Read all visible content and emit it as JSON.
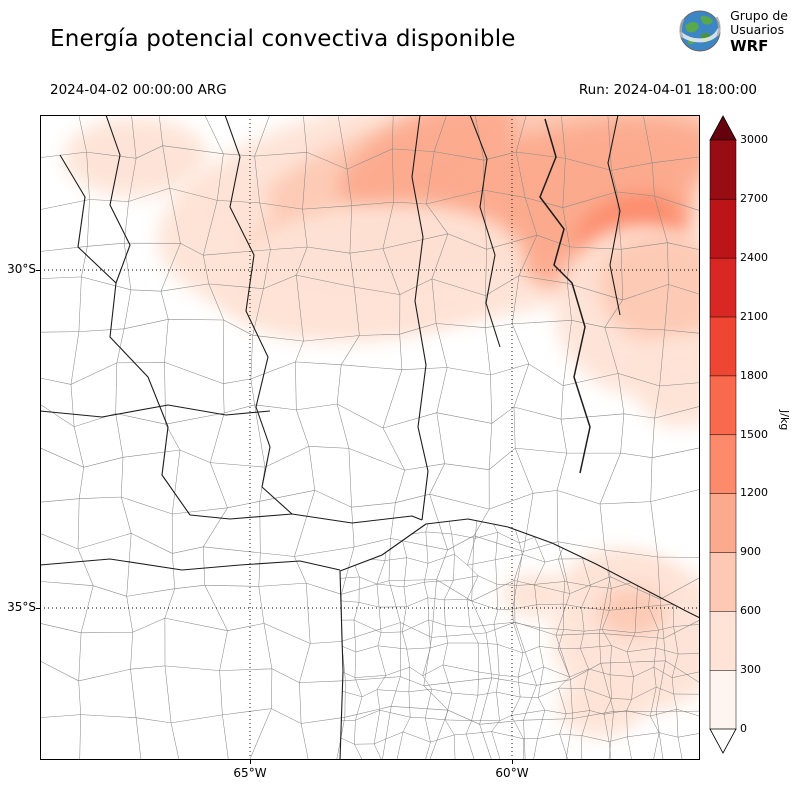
{
  "header": {
    "title": "Energía potencial convectiva disponible",
    "valid_time": "2024-04-02 00:00:00 ARG",
    "run_label": "Run: 2024-04-01 18:00:00",
    "logo": {
      "line1": "Grupo de",
      "line2": "Usuarios",
      "line3": "WRF"
    }
  },
  "axes": {
    "y_ticks": [
      {
        "label": "30°S",
        "page_y": 270
      },
      {
        "label": "35°S",
        "page_y": 608
      }
    ],
    "x_ticks": [
      {
        "label": "65°W",
        "page_x": 250
      },
      {
        "label": "60°W",
        "page_x": 512
      }
    ]
  },
  "colorbar": {
    "unit": "J/kg",
    "ticks": [
      "0",
      "300",
      "600",
      "900",
      "1200",
      "1500",
      "1800",
      "2100",
      "2400",
      "2700",
      "3000"
    ],
    "segment_colors": [
      "#fff5f0",
      "#fee3d6",
      "#fdc9b4",
      "#fcaa8e",
      "#fc8a6b",
      "#f9694c",
      "#ef4533",
      "#d92723",
      "#bb151a",
      "#980c13"
    ],
    "under_color": "#ffffff",
    "over_color": "#67000d"
  },
  "chart_data": {
    "type": "heatmap",
    "title": "Energía potencial convectiva disponible",
    "field": "CAPE (energía potencial convectiva disponible)",
    "unit": "J/kg",
    "levels": [
      0,
      300,
      600,
      900,
      1200,
      1500,
      1800,
      2100,
      2400,
      2700,
      3000
    ],
    "colormap": "Reds",
    "lat_ticks": [
      "30°S",
      "35°S"
    ],
    "lon_ticks": [
      "65°W",
      "60°W"
    ],
    "summary": "Shaded CAPE field over central-northern Argentina: values 300-1500 J/kg across the north and northeast (max band near the upper right), near zero in the center and west, weak patches (300-900 J/kg) over the southeast near the coast.",
    "regions": [
      {
        "cx": 420,
        "cy": 88,
        "rx": 305,
        "ry": 118,
        "rot": -8,
        "level": 300
      },
      {
        "cx": 445,
        "cy": 70,
        "rx": 245,
        "ry": 85,
        "rot": -12,
        "level": 600
      },
      {
        "cx": 495,
        "cy": 78,
        "rx": 185,
        "ry": 58,
        "rot": -16,
        "level": 900
      },
      {
        "cx": 562,
        "cy": 108,
        "rx": 95,
        "ry": 62,
        "rot": -22,
        "level": 900
      },
      {
        "cx": 588,
        "cy": 118,
        "rx": 55,
        "ry": 36,
        "rot": -22,
        "level": 1200
      },
      {
        "cx": 388,
        "cy": 42,
        "rx": 95,
        "ry": 42,
        "rot": -24,
        "level": 900
      },
      {
        "cx": 600,
        "cy": 195,
        "rx": 85,
        "ry": 85,
        "rot": 0,
        "level": 300
      },
      {
        "cx": 622,
        "cy": 172,
        "rx": 62,
        "ry": 55,
        "rot": 0,
        "level": 600
      },
      {
        "cx": 330,
        "cy": 158,
        "rx": 155,
        "ry": 68,
        "rot": -6,
        "level": 300
      },
      {
        "cx": 96,
        "cy": 42,
        "rx": 72,
        "ry": 40,
        "rot": 0,
        "level": 300
      },
      {
        "cx": 188,
        "cy": 96,
        "rx": 44,
        "ry": 32,
        "rot": 0,
        "level": 300
      },
      {
        "cx": 640,
        "cy": 268,
        "rx": 45,
        "ry": 45,
        "rot": 0,
        "level": 300
      },
      {
        "cx": 600,
        "cy": 520,
        "rx": 88,
        "ry": 78,
        "rot": 0,
        "level": 300
      },
      {
        "cx": 578,
        "cy": 468,
        "rx": 55,
        "ry": 34,
        "rot": 0,
        "level": 300
      },
      {
        "cx": 592,
        "cy": 497,
        "rx": 34,
        "ry": 24,
        "rot": 0,
        "level": 600
      },
      {
        "cx": 498,
        "cy": 480,
        "rx": 36,
        "ry": 22,
        "rot": 0,
        "level": 300
      },
      {
        "cx": 560,
        "cy": 592,
        "rx": 42,
        "ry": 30,
        "rot": 0,
        "level": 300
      }
    ]
  }
}
